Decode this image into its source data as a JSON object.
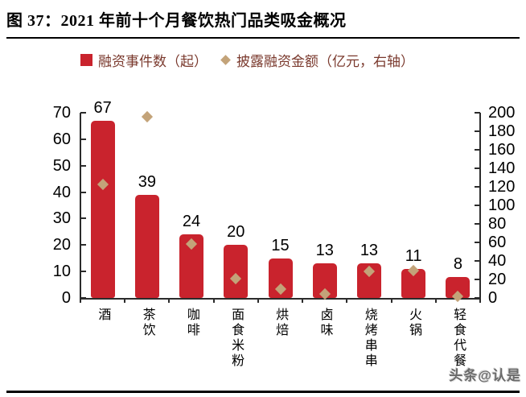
{
  "title": "图 37：2021 年前十个月餐饮热门品类吸金概况",
  "watermark": "头条@认是",
  "colors": {
    "bar": "#C9232D",
    "diamond": "#C3A379",
    "legend_text": "#7A392D",
    "axis_line": "#2B2B2B",
    "label_text": "#000000"
  },
  "legend": [
    {
      "label": "融资事件数（起）",
      "marker": "square"
    },
    {
      "label": "披露融资金额（亿元，右轴）",
      "marker": "diamond"
    }
  ],
  "chart_data": {
    "type": "bar",
    "subtype": "dual-axis bar + diamond scatter",
    "categories": [
      "酒",
      "茶饮",
      "咖啡",
      "面食米粉",
      "烘焙",
      "卤味",
      "烧烤串串",
      "火锅",
      "轻食代餐"
    ],
    "series": [
      {
        "name": "融资事件数（起）",
        "type": "bar",
        "axis": "left",
        "values": [
          67,
          39,
          24,
          20,
          15,
          13,
          13,
          11,
          8
        ]
      },
      {
        "name": "披露融资金额（亿元，右轴）",
        "type": "scatter-diamond",
        "axis": "right",
        "estimated_from_plot": true,
        "values": [
          123,
          196,
          58,
          21,
          10,
          4,
          29,
          30,
          2
        ]
      }
    ],
    "bar_data_labels": [
      "67",
      "39",
      "24",
      "20",
      "15",
      "13",
      "13",
      "11",
      "8"
    ],
    "left_axis": {
      "min": 0,
      "max": 70,
      "step": 10,
      "ticks": [
        0,
        10,
        20,
        30,
        40,
        50,
        60,
        70
      ]
    },
    "right_axis": {
      "min": 0,
      "max": 200,
      "step": 20,
      "ticks": [
        0,
        20,
        40,
        60,
        80,
        100,
        120,
        140,
        160,
        180,
        200
      ]
    },
    "grid": false,
    "legend_position": "top"
  }
}
